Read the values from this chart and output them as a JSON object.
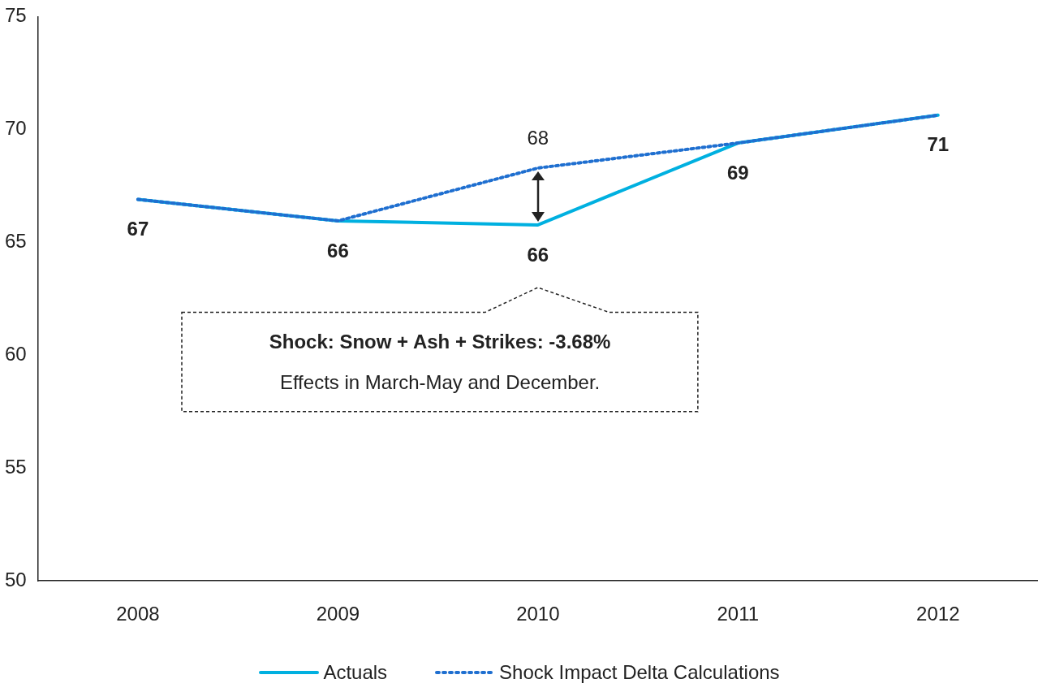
{
  "chart_data": {
    "type": "line",
    "categories": [
      "2008",
      "2009",
      "2010",
      "2011",
      "2012"
    ],
    "series": [
      {
        "name": "Actuals",
        "color": "#00b0e0",
        "line_style": "solid",
        "values": [
          66.9,
          65.95,
          65.77,
          69.4,
          70.63
        ],
        "value_labels": [
          "67",
          "66",
          "66",
          "69",
          "71"
        ]
      },
      {
        "name": "Shock Impact Delta Calculations",
        "color": "#1f6fd0",
        "line_style": "dotted",
        "values": [
          66.9,
          65.95,
          68.29,
          69.4,
          70.63
        ],
        "value_labels": [
          null,
          null,
          "68",
          null,
          null
        ]
      }
    ],
    "ylim": [
      50,
      75
    ],
    "yticks": [
      50,
      55,
      60,
      65,
      70,
      75
    ],
    "grid": false,
    "legend": "bottom",
    "marker": "none",
    "annotations": [
      "Shock: Snow + Ash + Strikes: -3.68%",
      "Effects in March-May and December."
    ]
  }
}
